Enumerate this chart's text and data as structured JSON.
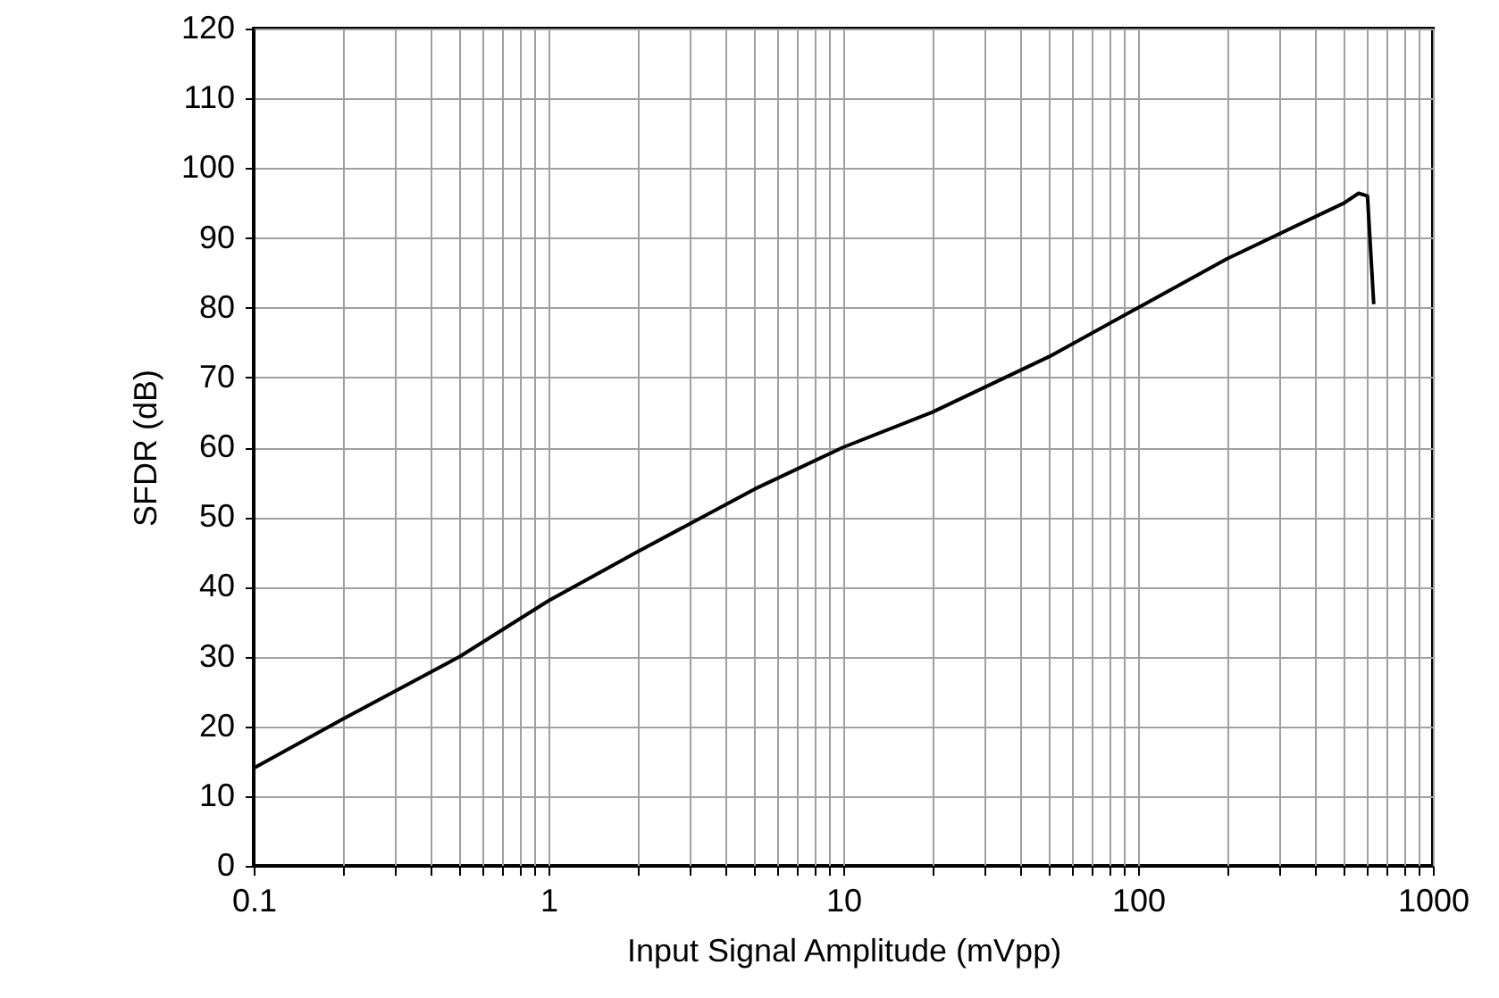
{
  "chart_data": {
    "type": "line",
    "xlabel": "Input Signal Amplitude (mVpp)",
    "ylabel": "SFDR (dB)",
    "log": "x",
    "grid": true,
    "x": [
      0.1,
      0.2,
      0.5,
      1,
      2,
      5,
      10,
      20,
      50,
      100,
      200,
      500,
      560,
      600,
      630
    ],
    "series": [
      {
        "color": "#000000",
        "values": [
          14,
          21,
          30,
          38,
          45,
          54,
          60,
          65,
          73,
          80,
          87,
          95,
          96.4,
          96,
          80.5
        ]
      }
    ],
    "xlim": [
      0.1,
      1000
    ],
    "ylim": [
      0,
      120
    ],
    "xticks": [
      0.1,
      {
        "value": 0.2,
        "label": null
      },
      {
        "value": 0.3,
        "label": null
      },
      {
        "value": 0.4,
        "label": null
      },
      {
        "value": 0.5,
        "label": null
      },
      {
        "value": 0.6,
        "label": null
      },
      {
        "value": 0.7,
        "label": null
      },
      {
        "value": 0.8,
        "label": null
      },
      {
        "value": 0.9,
        "label": null
      },
      1,
      {
        "value": 2,
        "label": null
      },
      {
        "value": 3,
        "label": null
      },
      {
        "value": 4,
        "label": null
      },
      {
        "value": 5,
        "label": null
      },
      {
        "value": 6,
        "label": null
      },
      {
        "value": 7,
        "label": null
      },
      {
        "value": 8,
        "label": null
      },
      {
        "value": 9,
        "label": null
      },
      10,
      {
        "value": 20,
        "label": null
      },
      {
        "value": 30,
        "label": null
      },
      {
        "value": 40,
        "label": null
      },
      {
        "value": 50,
        "label": null
      },
      {
        "value": 60,
        "label": null
      },
      {
        "value": 70,
        "label": null
      },
      {
        "value": 80,
        "label": null
      },
      {
        "value": 90,
        "label": null
      },
      100,
      {
        "value": 200,
        "label": null
      },
      {
        "value": 300,
        "label": null
      },
      {
        "value": 400,
        "label": null
      },
      {
        "value": 500,
        "label": null
      },
      {
        "value": 600,
        "label": null
      },
      {
        "value": 700,
        "label": null
      },
      {
        "value": 800,
        "label": null
      },
      {
        "value": 900,
        "label": null
      },
      1000
    ],
    "yticks": [
      0,
      10,
      20,
      30,
      40,
      50,
      60,
      70,
      80,
      90,
      100,
      110,
      120
    ],
    "marker": "none",
    "line_style": "solid"
  }
}
